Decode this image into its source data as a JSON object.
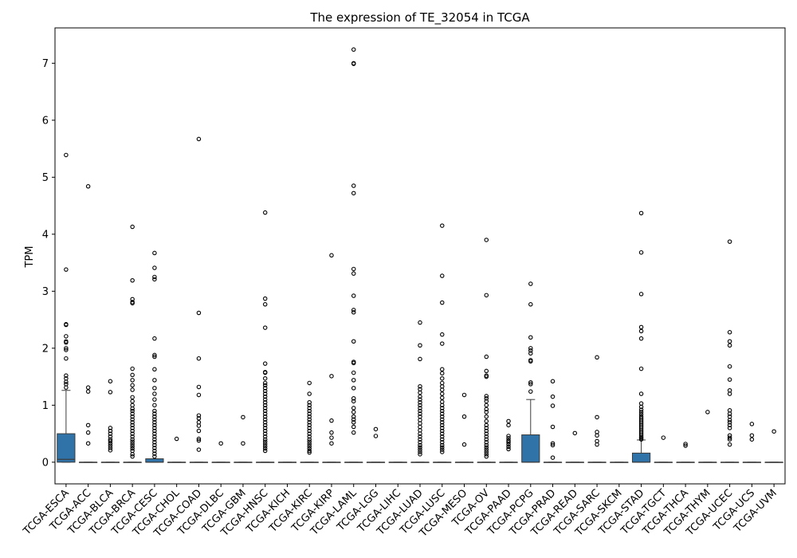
{
  "chart_data": {
    "type": "box",
    "title": "The expression of TE_32054 in TCGA",
    "xlabel": "",
    "ylabel": "TPM",
    "ylim": [
      -0.38,
      7.62
    ],
    "yticks": [
      0,
      1,
      2,
      3,
      4,
      5,
      6,
      7
    ],
    "grid": false,
    "legend": "none",
    "box_color": "#2f73a8",
    "categories": [
      "TCGA-ESCA",
      "TCGA-ACC",
      "TCGA-BLCA",
      "TCGA-BRCA",
      "TCGA-CESC",
      "TCGA-CHOL",
      "TCGA-COAD",
      "TCGA-DLBC",
      "TCGA-GBM",
      "TCGA-HNSC",
      "TCGA-KICH",
      "TCGA-KIRC",
      "TCGA-KIRP",
      "TCGA-LAML",
      "TCGA-LGG",
      "TCGA-LIHC",
      "TCGA-LUAD",
      "TCGA-LUSC",
      "TCGA-MESO",
      "TCGA-OV",
      "TCGA-PAAD",
      "TCGA-PCPG",
      "TCGA-PRAD",
      "TCGA-READ",
      "TCGA-SARC",
      "TCGA-SKCM",
      "TCGA-STAD",
      "TCGA-TGCT",
      "TCGA-THCA",
      "TCGA-THYM",
      "TCGA-UCEC",
      "TCGA-UCS",
      "TCGA-UVM"
    ],
    "boxes": [
      {
        "q1": 0.0,
        "median": 0.05,
        "q3": 0.5,
        "whisker_low": 0.0,
        "whisker_high": 1.26,
        "outliers": [
          5.39,
          3.38,
          2.42,
          2.41,
          2.21,
          2.12,
          2.1,
          2.0,
          1.97,
          1.82,
          1.52,
          1.47,
          1.41,
          1.37,
          1.31
        ]
      },
      {
        "q1": 0.0,
        "median": 0.0,
        "q3": 0.0,
        "whisker_low": 0.0,
        "whisker_high": 0.0,
        "outliers": [
          4.84,
          1.31,
          1.24,
          0.65,
          0.52,
          0.33
        ]
      },
      {
        "q1": 0.0,
        "median": 0.0,
        "q3": 0.0,
        "whisker_low": 0.0,
        "whisker_high": 0.0,
        "outliers": [
          1.42,
          1.23,
          0.6,
          0.55,
          0.5,
          0.45,
          0.4,
          0.37,
          0.33,
          0.29,
          0.25,
          0.21
        ]
      },
      {
        "q1": 0.0,
        "median": 0.0,
        "q3": 0.0,
        "whisker_low": 0.0,
        "whisker_high": 0.0,
        "outliers": [
          4.13,
          3.19,
          2.86,
          2.81,
          2.79,
          1.64,
          1.53,
          1.44,
          1.35,
          1.27,
          1.14,
          1.07,
          1.0,
          0.94,
          0.9,
          0.85,
          0.8,
          0.75,
          0.7,
          0.65,
          0.6,
          0.55,
          0.5,
          0.45,
          0.4,
          0.36,
          0.32,
          0.28,
          0.24,
          0.2,
          0.14,
          0.1
        ]
      },
      {
        "q1": 0.0,
        "median": 0.0,
        "q3": 0.06,
        "whisker_low": 0.0,
        "whisker_high": 0.06,
        "outliers": [
          3.67,
          3.41,
          3.25,
          3.21,
          2.17,
          1.88,
          1.85,
          1.63,
          1.44,
          1.3,
          1.2,
          1.1,
          1.0,
          0.9,
          0.85,
          0.8,
          0.75,
          0.7,
          0.65,
          0.6,
          0.55,
          0.5,
          0.45,
          0.4,
          0.35,
          0.3,
          0.25,
          0.2,
          0.15,
          0.1
        ]
      },
      {
        "q1": 0.0,
        "median": 0.0,
        "q3": 0.0,
        "whisker_low": 0.0,
        "whisker_high": 0.0,
        "outliers": [
          0.41
        ]
      },
      {
        "q1": 0.0,
        "median": 0.0,
        "q3": 0.0,
        "whisker_low": 0.0,
        "whisker_high": 0.0,
        "outliers": [
          5.67,
          2.62,
          1.82,
          1.32,
          1.18,
          0.82,
          0.77,
          0.7,
          0.64,
          0.55,
          0.41,
          0.38,
          0.22
        ]
      },
      {
        "q1": 0.0,
        "median": 0.0,
        "q3": 0.0,
        "whisker_low": 0.0,
        "whisker_high": 0.0,
        "outliers": [
          0.33
        ]
      },
      {
        "q1": 0.0,
        "median": 0.0,
        "q3": 0.0,
        "whisker_low": 0.0,
        "whisker_high": 0.0,
        "outliers": [
          0.79,
          0.33
        ]
      },
      {
        "q1": 0.0,
        "median": 0.0,
        "q3": 0.0,
        "whisker_low": 0.0,
        "whisker_high": 0.0,
        "outliers": [
          4.38,
          2.87,
          2.77,
          2.36,
          1.73,
          1.58,
          1.57,
          1.47,
          1.39,
          1.35,
          1.3,
          1.25,
          1.2,
          1.15,
          1.1,
          1.05,
          1.0,
          0.95,
          0.9,
          0.85,
          0.8,
          0.75,
          0.7,
          0.65,
          0.6,
          0.55,
          0.5,
          0.45,
          0.4,
          0.36,
          0.32,
          0.28,
          0.24,
          0.2
        ]
      },
      {
        "q1": 0.0,
        "median": 0.0,
        "q3": 0.0,
        "whisker_low": 0.0,
        "whisker_high": 0.0,
        "outliers": []
      },
      {
        "q1": 0.0,
        "median": 0.0,
        "q3": 0.0,
        "whisker_low": 0.0,
        "whisker_high": 0.0,
        "outliers": [
          1.39,
          1.2,
          1.05,
          1.0,
          0.95,
          0.9,
          0.85,
          0.8,
          0.75,
          0.7,
          0.65,
          0.6,
          0.55,
          0.5,
          0.45,
          0.4,
          0.36,
          0.32,
          0.28,
          0.24,
          0.2,
          0.17
        ]
      },
      {
        "q1": 0.0,
        "median": 0.0,
        "q3": 0.0,
        "whisker_low": 0.0,
        "whisker_high": 0.0,
        "outliers": [
          3.63,
          1.51,
          0.73,
          0.52,
          0.43,
          0.33
        ]
      },
      {
        "q1": 0.0,
        "median": 0.0,
        "q3": 0.0,
        "whisker_low": 0.0,
        "whisker_high": 0.0,
        "outliers": [
          7.24,
          7.0,
          6.99,
          4.85,
          4.72,
          3.39,
          3.31,
          2.92,
          2.67,
          2.63,
          2.12,
          1.76,
          1.74,
          1.57,
          1.44,
          1.3,
          1.12,
          1.07,
          0.95,
          0.88,
          0.8,
          0.75,
          0.7,
          0.62,
          0.52
        ]
      },
      {
        "q1": 0.0,
        "median": 0.0,
        "q3": 0.0,
        "whisker_low": 0.0,
        "whisker_high": 0.0,
        "outliers": [
          0.58,
          0.46
        ]
      },
      {
        "q1": 0.0,
        "median": 0.0,
        "q3": 0.0,
        "whisker_low": 0.0,
        "whisker_high": 0.0,
        "outliers": []
      },
      {
        "q1": 0.0,
        "median": 0.0,
        "q3": 0.0,
        "whisker_low": 0.0,
        "whisker_high": 0.0,
        "outliers": [
          2.45,
          2.05,
          1.81,
          1.33,
          1.28,
          1.22,
          1.15,
          1.1,
          1.05,
          1.0,
          0.95,
          0.9,
          0.85,
          0.8,
          0.74,
          0.68,
          0.62,
          0.56,
          0.5,
          0.45,
          0.4,
          0.35,
          0.3,
          0.26,
          0.22,
          0.18,
          0.14
        ]
      },
      {
        "q1": 0.0,
        "median": 0.0,
        "q3": 0.0,
        "whisker_low": 0.0,
        "whisker_high": 0.0,
        "outliers": [
          4.15,
          3.27,
          2.8,
          2.24,
          2.08,
          1.63,
          1.56,
          1.47,
          1.39,
          1.33,
          1.27,
          1.2,
          1.13,
          1.06,
          1.0,
          0.95,
          0.9,
          0.85,
          0.8,
          0.75,
          0.7,
          0.65,
          0.6,
          0.55,
          0.5,
          0.45,
          0.4,
          0.35,
          0.3,
          0.26,
          0.22,
          0.18
        ]
      },
      {
        "q1": 0.0,
        "median": 0.0,
        "q3": 0.0,
        "whisker_low": 0.0,
        "whisker_high": 0.0,
        "outliers": [
          1.18,
          0.8,
          0.31
        ]
      },
      {
        "q1": 0.0,
        "median": 0.0,
        "q3": 0.0,
        "whisker_low": 0.0,
        "whisker_high": 0.0,
        "outliers": [
          3.9,
          2.93,
          1.85,
          1.6,
          1.52,
          1.5,
          1.16,
          1.12,
          1.07,
          1.0,
          0.93,
          0.88,
          0.8,
          0.72,
          0.65,
          0.6,
          0.55,
          0.5,
          0.45,
          0.4,
          0.35,
          0.3,
          0.26,
          0.22,
          0.18,
          0.14,
          0.1
        ]
      },
      {
        "q1": 0.0,
        "median": 0.0,
        "q3": 0.0,
        "whisker_low": 0.0,
        "whisker_high": 0.0,
        "outliers": [
          0.72,
          0.65,
          0.46,
          0.42,
          0.38,
          0.35,
          0.31,
          0.27,
          0.23
        ]
      },
      {
        "q1": 0.0,
        "median": 0.0,
        "q3": 0.48,
        "whisker_low": 0.0,
        "whisker_high": 1.1,
        "outliers": [
          3.13,
          2.77,
          2.19,
          2.0,
          1.96,
          1.91,
          1.79,
          1.77,
          1.4,
          1.37,
          1.24
        ]
      },
      {
        "q1": 0.0,
        "median": 0.0,
        "q3": 0.0,
        "whisker_low": 0.0,
        "whisker_high": 0.0,
        "outliers": [
          1.42,
          1.15,
          0.99,
          0.62,
          0.33,
          0.3,
          0.08
        ]
      },
      {
        "q1": 0.0,
        "median": 0.0,
        "q3": 0.0,
        "whisker_low": 0.0,
        "whisker_high": 0.0,
        "outliers": [
          0.51
        ]
      },
      {
        "q1": 0.0,
        "median": 0.0,
        "q3": 0.0,
        "whisker_low": 0.0,
        "whisker_high": 0.0,
        "outliers": [
          1.84,
          0.79,
          0.53,
          0.47,
          0.37,
          0.31
        ]
      },
      {
        "q1": 0.0,
        "median": 0.0,
        "q3": 0.0,
        "whisker_low": 0.0,
        "whisker_high": 0.0,
        "outliers": []
      },
      {
        "q1": 0.0,
        "median": 0.0,
        "q3": 0.16,
        "whisker_low": 0.0,
        "whisker_high": 0.39,
        "outliers": [
          4.37,
          3.68,
          2.95,
          2.37,
          2.3,
          2.17,
          1.64,
          1.2,
          1.03,
          0.97,
          0.92,
          0.88,
          0.84,
          0.8,
          0.77,
          0.74,
          0.71,
          0.68,
          0.65,
          0.62,
          0.59,
          0.56,
          0.53,
          0.5,
          0.47,
          0.44,
          0.42,
          0.4
        ]
      },
      {
        "q1": 0.0,
        "median": 0.0,
        "q3": 0.0,
        "whisker_low": 0.0,
        "whisker_high": 0.0,
        "outliers": [
          0.43
        ]
      },
      {
        "q1": 0.0,
        "median": 0.0,
        "q3": 0.0,
        "whisker_low": 0.0,
        "whisker_high": 0.0,
        "outliers": [
          0.32,
          0.29
        ]
      },
      {
        "q1": 0.0,
        "median": 0.0,
        "q3": 0.0,
        "whisker_low": 0.0,
        "whisker_high": 0.0,
        "outliers": [
          0.88
        ]
      },
      {
        "q1": 0.0,
        "median": 0.0,
        "q3": 0.0,
        "whisker_low": 0.0,
        "whisker_high": 0.0,
        "outliers": [
          3.87,
          2.28,
          2.12,
          2.05,
          1.68,
          1.45,
          1.26,
          1.2,
          0.91,
          0.85,
          0.8,
          0.74,
          0.7,
          0.65,
          0.6,
          0.47,
          0.43,
          0.4,
          0.31
        ]
      },
      {
        "q1": 0.0,
        "median": 0.0,
        "q3": 0.0,
        "whisker_low": 0.0,
        "whisker_high": 0.0,
        "outliers": [
          0.67,
          0.47,
          0.4
        ]
      },
      {
        "q1": 0.0,
        "median": 0.0,
        "q3": 0.0,
        "whisker_low": 0.0,
        "whisker_high": 0.0,
        "outliers": [
          0.54
        ]
      }
    ]
  }
}
